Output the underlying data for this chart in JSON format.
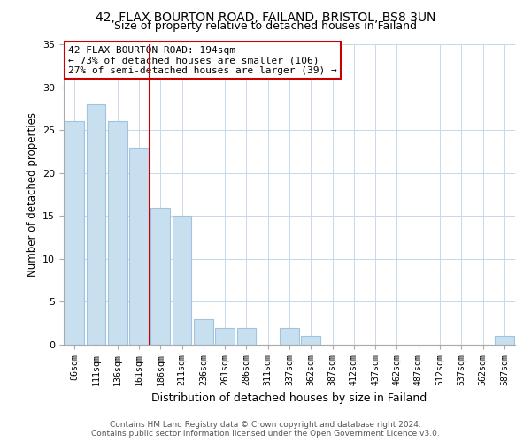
{
  "title1": "42, FLAX BOURTON ROAD, FAILAND, BRISTOL, BS8 3UN",
  "title2": "Size of property relative to detached houses in Failand",
  "xlabel": "Distribution of detached houses by size in Failand",
  "ylabel": "Number of detached properties",
  "bar_color": "#c8dff0",
  "bar_edge_color": "#a0c4e0",
  "vline_color": "#cc0000",
  "vline_x": 3.5,
  "categories": [
    "86sqm",
    "111sqm",
    "136sqm",
    "161sqm",
    "186sqm",
    "211sqm",
    "236sqm",
    "261sqm",
    "286sqm",
    "311sqm",
    "337sqm",
    "362sqm",
    "387sqm",
    "412sqm",
    "437sqm",
    "462sqm",
    "487sqm",
    "512sqm",
    "537sqm",
    "562sqm",
    "587sqm"
  ],
  "values": [
    26,
    28,
    26,
    23,
    16,
    15,
    3,
    2,
    2,
    0,
    2,
    1,
    0,
    0,
    0,
    0,
    0,
    0,
    0,
    0,
    1
  ],
  "ylim": [
    0,
    35
  ],
  "yticks": [
    0,
    5,
    10,
    15,
    20,
    25,
    30,
    35
  ],
  "annotation_title": "42 FLAX BOURTON ROAD: 194sqm",
  "annotation_line1": "← 73% of detached houses are smaller (106)",
  "annotation_line2": "27% of semi-detached houses are larger (39) →",
  "annotation_box_color": "#ffffff",
  "annotation_box_edge": "#cc0000",
  "footer1": "Contains HM Land Registry data © Crown copyright and database right 2024.",
  "footer2": "Contains public sector information licensed under the Open Government Licence v3.0."
}
